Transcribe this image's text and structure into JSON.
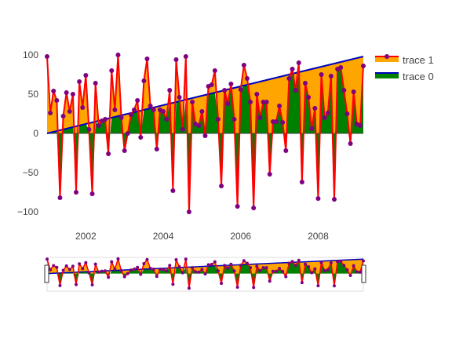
{
  "chart_data": {
    "type": "area",
    "title": "",
    "xlabel": "",
    "ylabel": "",
    "xlim": [
      "2001-01-01",
      "2009-03-01"
    ],
    "ylim": [
      -120,
      110
    ],
    "x_ticks": [
      "2002",
      "2004",
      "2006",
      "2008"
    ],
    "y_ticks": [
      -100,
      -50,
      0,
      50,
      100
    ],
    "grid": false,
    "legend": "top-right",
    "rangeslider": true,
    "series": [
      {
        "name": "trace 1",
        "fill": "tonexty",
        "color_line": "#ff0000",
        "color_fill": "#ffa500",
        "marker_color": "#800080",
        "mode": "lines+markers",
        "x": [
          "2001-01",
          "2001-02",
          "2001-03",
          "2001-04",
          "2001-05",
          "2001-06",
          "2001-07",
          "2001-08",
          "2001-09",
          "2001-10",
          "2001-11",
          "2001-12",
          "2002-01",
          "2002-02",
          "2002-03",
          "2002-04",
          "2002-05",
          "2002-06",
          "2002-07",
          "2002-08",
          "2002-09",
          "2002-10",
          "2002-11",
          "2002-12",
          "2003-01",
          "2003-02",
          "2003-03",
          "2003-04",
          "2003-05",
          "2003-06",
          "2003-07",
          "2003-08",
          "2003-09",
          "2003-10",
          "2003-11",
          "2003-12",
          "2004-01",
          "2004-02",
          "2004-03",
          "2004-04",
          "2004-05",
          "2004-06",
          "2004-07",
          "2004-08",
          "2004-09",
          "2004-10",
          "2004-11",
          "2004-12",
          "2005-01",
          "2005-02",
          "2005-03",
          "2005-04",
          "2005-05",
          "2005-06",
          "2005-07",
          "2005-08",
          "2005-09",
          "2005-10",
          "2005-11",
          "2005-12",
          "2006-01",
          "2006-02",
          "2006-03",
          "2006-04",
          "2006-05",
          "2006-06",
          "2006-07",
          "2006-08",
          "2006-09",
          "2006-10",
          "2006-11",
          "2006-12",
          "2007-01",
          "2007-02",
          "2007-03",
          "2007-04",
          "2007-05",
          "2007-06",
          "2007-07",
          "2007-08",
          "2007-09",
          "2007-10",
          "2007-11",
          "2007-12",
          "2008-01",
          "2008-02",
          "2008-03",
          "2008-04",
          "2008-05",
          "2008-06",
          "2008-07",
          "2008-08",
          "2008-09",
          "2008-10",
          "2008-11",
          "2008-12",
          "2009-01",
          "2009-02",
          "2009-03"
        ],
        "values": [
          98,
          26,
          54,
          42,
          -82,
          22,
          52,
          28,
          50,
          -75,
          66,
          33,
          74,
          5,
          -77,
          64,
          10,
          16,
          18,
          -26,
          80,
          30,
          100,
          20,
          -22,
          0,
          24,
          30,
          42,
          -5,
          67,
          95,
          35,
          30,
          -20,
          30,
          28,
          18,
          55,
          -73,
          94,
          46,
          5,
          98,
          -100,
          40,
          12,
          10,
          28,
          -3,
          60,
          62,
          80,
          18,
          -67,
          55,
          38,
          63,
          18,
          -93,
          56,
          87,
          70,
          40,
          -95,
          50,
          20,
          40,
          40,
          -52,
          15,
          15,
          35,
          14,
          -22,
          70,
          82,
          55,
          90,
          -62,
          64,
          46,
          6,
          32,
          -83,
          75,
          20,
          26,
          73,
          -84,
          82,
          84,
          55,
          25,
          -13,
          53,
          12,
          10,
          86
        ]
      },
      {
        "name": "trace 0",
        "fill": "tozeroy",
        "color_line": "#0000c0",
        "color_fill": "#008000",
        "mode": "lines",
        "x": [
          "2001-01",
          "2009-03"
        ],
        "values": [
          0,
          98
        ]
      }
    ]
  }
}
